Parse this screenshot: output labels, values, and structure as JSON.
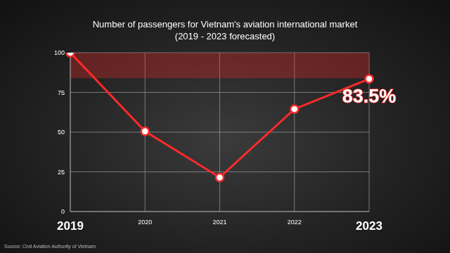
{
  "chart_data": {
    "type": "line",
    "title": "Number of passengers for Vietnam's aviation international market",
    "subtitle": "(2019 - 2023 forecasted)",
    "source": "Source: Civil Aviation Authority of Vietnam",
    "categories": [
      "2019",
      "2020",
      "2021",
      "2022",
      "2023"
    ],
    "values": [
      100,
      50.5,
      21.5,
      64.5,
      83.5
    ],
    "value_labels": [
      null,
      null,
      null,
      null,
      "83.5%"
    ],
    "data_labels": true,
    "color": "#ff2a2a",
    "marker": "circle",
    "ylim": [
      0,
      100
    ],
    "yticks": [
      0,
      25,
      50,
      75,
      100
    ],
    "shaded_range": [
      84,
      100
    ],
    "grid": true
  }
}
